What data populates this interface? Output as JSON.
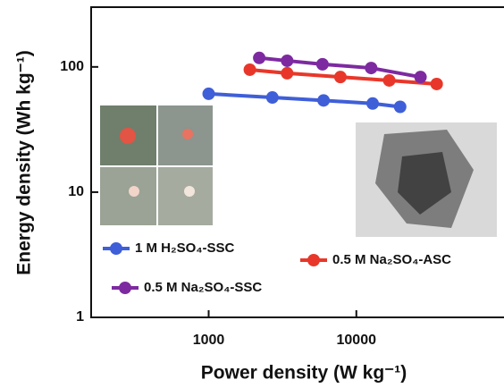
{
  "chart_data": {
    "type": "line",
    "xlabel": "Power density (W kg⁻¹)",
    "ylabel": "Energy density (Wh kg⁻¹)",
    "xscale": "log",
    "yscale": "log",
    "xlim": [
      160,
      100000
    ],
    "ylim": [
      1,
      300
    ],
    "xticks": [
      1000,
      10000
    ],
    "yticks": [
      1,
      10,
      100
    ],
    "series": [
      {
        "name": "1 M H₂SO₄-SSC",
        "color": "#3f5fd8",
        "x": [
          1000,
          2700,
          6000,
          12900,
          19800
        ],
        "values": [
          61,
          57,
          54,
          51,
          48
        ]
      },
      {
        "name": "0.5 M Na₂SO₄-ASC",
        "color": "#e8372a",
        "x": [
          1900,
          3400,
          7800,
          16700,
          35000
        ],
        "values": [
          95,
          89,
          83,
          78,
          73
        ]
      },
      {
        "name": "0.5 M Na₂SO₄-SSC",
        "color": "#7d2aa0",
        "x": [
          2200,
          3400,
          5900,
          12600,
          27200
        ],
        "values": [
          118,
          112,
          105,
          98,
          83
        ]
      }
    ]
  }
}
